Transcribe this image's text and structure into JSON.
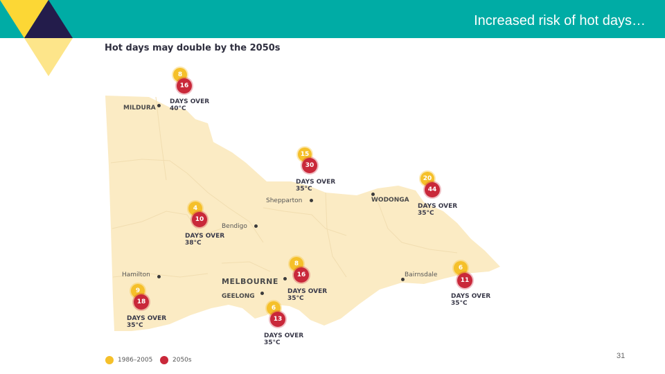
{
  "slide": {
    "title": "Increased risk of hot days…",
    "page_number": "31"
  },
  "colors": {
    "header_bar": "#00aca5",
    "deco_yellow": "#fcd735",
    "deco_yellow_light": "#fde58a",
    "deco_navy": "#231c4b",
    "map_fill": "#fbebc4",
    "baseline_sun": "#f5c02a",
    "future_sun": "#c9283a"
  },
  "map": {
    "title": "Hot days may double by the 2050s",
    "places": [
      {
        "name": "MILDURA",
        "style": "bold"
      },
      {
        "name": "Shepparton",
        "style": "normal"
      },
      {
        "name": "WODONGA",
        "style": "bold"
      },
      {
        "name": "Bendigo",
        "style": "normal"
      },
      {
        "name": "Hamilton",
        "style": "normal"
      },
      {
        "name": "MELBOURNE",
        "style": "major"
      },
      {
        "name": "GEELONG",
        "style": "bold"
      },
      {
        "name": "Bairnsdale",
        "style": "normal"
      }
    ],
    "markers": [
      {
        "place": "Mildura",
        "baseline": "8",
        "future": "16",
        "label_line1": "DAYS OVER",
        "label_line2": "40°C"
      },
      {
        "place": "Shepparton",
        "baseline": "15",
        "future": "30",
        "label_line1": "DAYS OVER",
        "label_line2": "35°C"
      },
      {
        "place": "Wodonga",
        "baseline": "20",
        "future": "44",
        "label_line1": "DAYS OVER",
        "label_line2": "35°C"
      },
      {
        "place": "Bendigo",
        "baseline": "4",
        "future": "10",
        "label_line1": "DAYS OVER",
        "label_line2": "38°C"
      },
      {
        "place": "Melbourne",
        "baseline": "8",
        "future": "16",
        "label_line1": "DAYS OVER",
        "label_line2": "35°C"
      },
      {
        "place": "Bairnsdale",
        "baseline": "6",
        "future": "11",
        "label_line1": "DAYS OVER",
        "label_line2": "35°C"
      },
      {
        "place": "Hamilton",
        "baseline": "9",
        "future": "18",
        "label_line1": "DAYS OVER",
        "label_line2": "35°C"
      },
      {
        "place": "Geelong",
        "baseline": "6",
        "future": "13",
        "label_line1": "DAYS OVER",
        "label_line2": "35°C"
      }
    ],
    "legend": [
      {
        "label": "1986–2005"
      },
      {
        "label": "2050s"
      }
    ]
  }
}
